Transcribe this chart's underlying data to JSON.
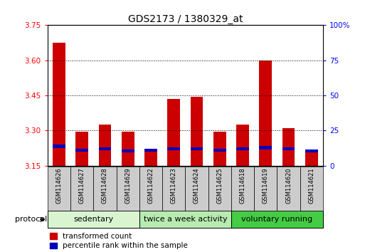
{
  "title": "GDS2173 / 1380329_at",
  "samples": [
    "GSM114626",
    "GSM114627",
    "GSM114628",
    "GSM114629",
    "GSM114622",
    "GSM114623",
    "GSM114624",
    "GSM114625",
    "GSM114618",
    "GSM114619",
    "GSM114620",
    "GSM114621"
  ],
  "red_values": [
    3.675,
    3.295,
    3.325,
    3.295,
    3.22,
    3.435,
    3.445,
    3.295,
    3.325,
    3.6,
    3.31,
    3.215
  ],
  "blue_bottoms": [
    3.225,
    3.21,
    3.215,
    3.208,
    3.21,
    3.215,
    3.215,
    3.21,
    3.215,
    3.22,
    3.215,
    3.208
  ],
  "blue_heights": [
    0.016,
    0.012,
    0.013,
    0.01,
    0.012,
    0.013,
    0.013,
    0.012,
    0.013,
    0.014,
    0.013,
    0.011
  ],
  "ylim": [
    3.15,
    3.75
  ],
  "yticks": [
    3.15,
    3.3,
    3.45,
    3.6,
    3.75
  ],
  "right_yticks_vals": [
    3.15,
    3.3,
    3.45,
    3.6,
    3.75
  ],
  "right_yticks_labels": [
    "0",
    "25",
    "50",
    "75",
    "100%"
  ],
  "groups": [
    {
      "label": "sedentary",
      "start": 0,
      "end": 4,
      "color": "#d8f5d0"
    },
    {
      "label": "twice a week activity",
      "start": 4,
      "end": 8,
      "color": "#b8ebb0"
    },
    {
      "label": "voluntary running",
      "start": 8,
      "end": 12,
      "color": "#44cc44"
    }
  ],
  "bar_color": "#cc0000",
  "blue_color": "#0000bb",
  "bar_width": 0.55,
  "legend_items": [
    {
      "color": "#cc0000",
      "label": "transformed count"
    },
    {
      "color": "#0000bb",
      "label": "percentile rank within the sample"
    }
  ],
  "title_fontsize": 10,
  "tick_fontsize": 7.5,
  "group_fontsize": 8
}
